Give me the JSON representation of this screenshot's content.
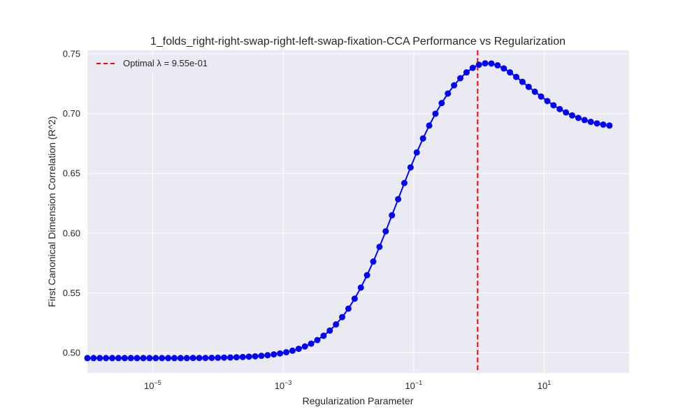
{
  "chart_data": {
    "type": "line",
    "title": "1_folds_right-right-swap-right-left-swap-fixation-CCA Performance vs Regularization",
    "xlabel": "Regularization Parameter",
    "ylabel": "First Canonical Dimension Correlation (R^2)",
    "x_scale": "log",
    "xlim": [
      1e-06,
      200
    ],
    "ylim": [
      0.483,
      0.753
    ],
    "x_ticks": [
      {
        "value": 1e-05,
        "base": "10",
        "exp": "−5"
      },
      {
        "value": 0.001,
        "base": "10",
        "exp": "−3"
      },
      {
        "value": 0.1,
        "base": "10",
        "exp": "−1"
      },
      {
        "value": 10,
        "base": "10",
        "exp": "1"
      }
    ],
    "y_ticks": [
      0.5,
      0.55,
      0.6,
      0.65,
      0.7,
      0.75
    ],
    "y_tick_labels": [
      "0.50",
      "0.55",
      "0.60",
      "0.65",
      "0.70",
      "0.75"
    ],
    "grid": true,
    "legend_position": "top-left",
    "colors": {
      "background": "#eaeaf2",
      "grid": "#ffffff",
      "series": "#0000ff",
      "optimal_line": "#ff0000"
    },
    "series": [
      {
        "log10_x_start": -6,
        "log10_x_end": 2,
        "y": [
          0.4954,
          0.4954,
          0.4954,
          0.4954,
          0.4954,
          0.4954,
          0.4954,
          0.4954,
          0.4954,
          0.4954,
          0.4954,
          0.4954,
          0.4954,
          0.4954,
          0.4954,
          0.4954,
          0.4954,
          0.4955,
          0.4955,
          0.4955,
          0.4956,
          0.4957,
          0.4958,
          0.4959,
          0.4961,
          0.4963,
          0.4966,
          0.4969,
          0.4973,
          0.4978,
          0.4985,
          0.4993,
          0.5003,
          0.5016,
          0.5032,
          0.5051,
          0.5075,
          0.5105,
          0.5141,
          0.5184,
          0.5236,
          0.5297,
          0.5368,
          0.5451,
          0.5544,
          0.5648,
          0.5762,
          0.5885,
          0.6015,
          0.6149,
          0.6284,
          0.6419,
          0.655,
          0.6675,
          0.6792,
          0.69,
          0.6999,
          0.7088,
          0.7168,
          0.7237,
          0.7296,
          0.7345,
          0.7383,
          0.7409,
          0.7421,
          0.7419,
          0.7404,
          0.7378,
          0.7345,
          0.7307,
          0.7266,
          0.7224,
          0.7183,
          0.7143,
          0.7105,
          0.707,
          0.7038,
          0.701,
          0.6985,
          0.6964,
          0.6946,
          0.6931,
          0.6918,
          0.6908,
          0.69
        ]
      }
    ],
    "optimal": {
      "x": 0.955,
      "legend_label": "Optimal λ = 9.55e-01"
    }
  }
}
